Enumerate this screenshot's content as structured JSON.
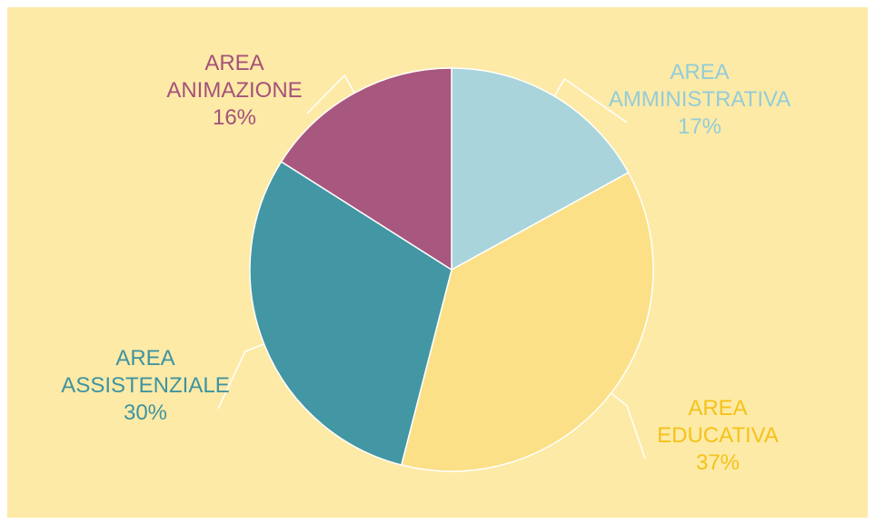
{
  "chart_data": {
    "type": "pie",
    "categories": [
      "AREA AMMINISTRATIVA",
      "AREA EDUCATIVA",
      "AREA ASSISTENZIALE",
      "AREA ANIMAZIONE"
    ],
    "values": [
      17,
      37,
      30,
      16
    ],
    "value_labels": [
      "17%",
      "37%",
      "30%",
      "16%"
    ],
    "colors": [
      "#a9d4dc",
      "#fbe087",
      "#4396a3",
      "#a8577e"
    ],
    "label_colors": [
      "#93ccd8",
      "#f5c21a",
      "#3f93a0",
      "#a4527a"
    ]
  }
}
